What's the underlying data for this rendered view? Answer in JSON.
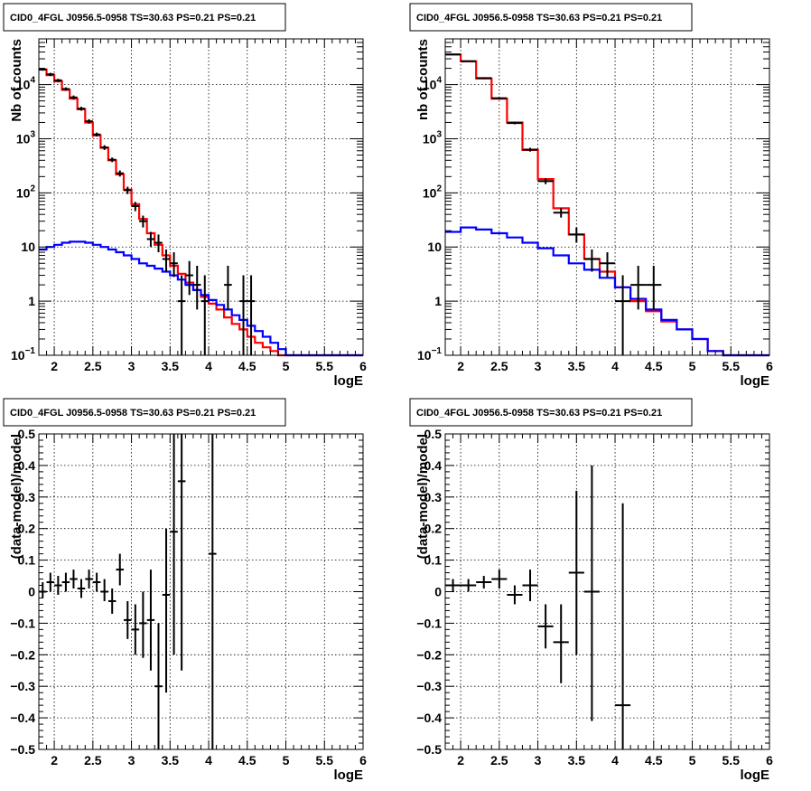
{
  "chart_data": [
    {
      "type": "histogram",
      "title": "CID0_4FGL J0956.5-0958 TS=30.63 PS=0.21 PS=0.21",
      "xlabel": "logE",
      "ylabel": "Nb of counts",
      "xlim": [
        1.8,
        6.0
      ],
      "ylim": [
        0.1,
        70000
      ],
      "log_y": true,
      "grid": true,
      "xticks": [
        "2",
        "2.5",
        "3",
        "3.5",
        "4",
        "4.5",
        "5",
        "5.5",
        "6"
      ],
      "yticks": [
        {
          "v": 0.1,
          "base": "10",
          "exp": "−1"
        },
        {
          "v": 1,
          "label": "1"
        },
        {
          "v": 10,
          "label": "10"
        },
        {
          "v": 100,
          "base": "10",
          "exp": "2"
        },
        {
          "v": 1000,
          "base": "10",
          "exp": "3"
        },
        {
          "v": 10000,
          "base": "10",
          "exp": "4"
        }
      ],
      "bin_edges": [
        1.8,
        1.9,
        2.0,
        2.1,
        2.2,
        2.3,
        2.4,
        2.5,
        2.6,
        2.7,
        2.8,
        2.9,
        3.0,
        3.1,
        3.2,
        3.3,
        3.4,
        3.5,
        3.6,
        3.7,
        3.8,
        3.9,
        4.0,
        4.1,
        4.2,
        4.3,
        4.4,
        4.5,
        4.6,
        4.7,
        4.8,
        4.9,
        5.0,
        5.1,
        5.2,
        5.3,
        5.4,
        5.5,
        5.6,
        5.7,
        5.8,
        5.9,
        6.0
      ],
      "series": [
        {
          "color": "#ff0000",
          "values": [
            19000,
            15000,
            11500,
            8000,
            5500,
            3500,
            2000,
            1150,
            680,
            400,
            220,
            115,
            62,
            33,
            18,
            11,
            7,
            4.5,
            3.2,
            2.2,
            1.6,
            1.2,
            0.9,
            0.7,
            0.5,
            0.38,
            0.3,
            0.22,
            0.17,
            0.14,
            0.12,
            0.1,
            0.1,
            0.1,
            0.1,
            0.1,
            0.1,
            0.1,
            0.1,
            0.1,
            0.1,
            0.1
          ]
        },
        {
          "color": "#0000ff",
          "values": [
            9,
            10,
            11,
            12,
            12.5,
            12.5,
            12,
            11,
            10,
            9,
            8,
            7,
            6,
            5,
            4.5,
            4,
            3.5,
            3,
            2.5,
            2,
            1.6,
            1.3,
            1.05,
            0.85,
            0.7,
            0.55,
            0.45,
            0.35,
            0.28,
            0.22,
            0.17,
            0.13,
            0.1,
            0.1,
            0.1,
            0.1,
            0.1,
            0.1,
            0.1,
            0.1,
            0.1,
            0.1
          ]
        }
      ],
      "points": [
        {
          "x": 1.85,
          "y": 19000,
          "lo": 18000,
          "hi": 20000
        },
        {
          "x": 1.95,
          "y": 15500,
          "lo": 14500,
          "hi": 16500
        },
        {
          "x": 2.05,
          "y": 12000,
          "lo": 11200,
          "hi": 12800
        },
        {
          "x": 2.15,
          "y": 8300,
          "lo": 7700,
          "hi": 8900
        },
        {
          "x": 2.25,
          "y": 5800,
          "lo": 5300,
          "hi": 6300
        },
        {
          "x": 2.35,
          "y": 3600,
          "lo": 3300,
          "hi": 3900
        },
        {
          "x": 2.45,
          "y": 2100,
          "lo": 1900,
          "hi": 2300
        },
        {
          "x": 2.55,
          "y": 1200,
          "lo": 1100,
          "hi": 1300
        },
        {
          "x": 2.65,
          "y": 690,
          "lo": 620,
          "hi": 760
        },
        {
          "x": 2.75,
          "y": 410,
          "lo": 370,
          "hi": 450
        },
        {
          "x": 2.85,
          "y": 230,
          "lo": 200,
          "hi": 260
        },
        {
          "x": 2.95,
          "y": 112,
          "lo": 95,
          "hi": 130
        },
        {
          "x": 3.05,
          "y": 57,
          "lo": 46,
          "hi": 68
        },
        {
          "x": 3.15,
          "y": 30,
          "lo": 23,
          "hi": 38
        },
        {
          "x": 3.25,
          "y": 14,
          "lo": 10,
          "hi": 19
        },
        {
          "x": 3.35,
          "y": 12,
          "lo": 8,
          "hi": 17
        },
        {
          "x": 3.45,
          "y": 6,
          "lo": 3.5,
          "hi": 9
        },
        {
          "x": 3.55,
          "y": 5,
          "lo": 2.8,
          "hi": 8
        },
        {
          "x": 3.65,
          "y": 1,
          "lo": 0.1,
          "hi": 3
        },
        {
          "x": 3.75,
          "y": 3,
          "lo": 1.3,
          "hi": 5.5
        },
        {
          "x": 3.85,
          "y": 2,
          "lo": 0.7,
          "hi": 4.5
        },
        {
          "x": 3.95,
          "y": 1,
          "lo": 0.1,
          "hi": 3
        },
        {
          "x": 4.25,
          "y": 2,
          "lo": 0.7,
          "hi": 4.5
        },
        {
          "x": 4.45,
          "y": 1,
          "lo": 0.1,
          "hi": 3
        },
        {
          "x": 4.55,
          "y": 1,
          "lo": 0.1,
          "hi": 3
        }
      ]
    },
    {
      "type": "histogram",
      "title": "CID0_4FGL J0956.5-0958 TS=30.63 PS=0.21 PS=0.21",
      "xlabel": "logE",
      "ylabel": "nb of counts",
      "xlim": [
        1.8,
        6.0
      ],
      "ylim": [
        0.1,
        70000
      ],
      "log_y": true,
      "grid": true,
      "xticks": [
        "2",
        "2.5",
        "3",
        "3.5",
        "4",
        "4.5",
        "5",
        "5.5",
        "6"
      ],
      "yticks": [
        {
          "v": 0.1,
          "base": "10",
          "exp": "−1"
        },
        {
          "v": 1,
          "label": "1"
        },
        {
          "v": 10,
          "label": "10"
        },
        {
          "v": 100,
          "base": "10",
          "exp": "2"
        },
        {
          "v": 1000,
          "base": "10",
          "exp": "3"
        },
        {
          "v": 10000,
          "base": "10",
          "exp": "4"
        }
      ],
      "bin_edges": [
        1.8,
        2.0,
        2.2,
        2.4,
        2.6,
        2.8,
        3.0,
        3.2,
        3.4,
        3.6,
        3.8,
        4.0,
        4.2,
        4.4,
        4.6,
        4.8,
        5.0,
        5.2,
        5.4,
        5.6,
        5.8,
        6.0
      ],
      "series": [
        {
          "color": "#ff0000",
          "values": [
            36000,
            27000,
            13000,
            5500,
            2000,
            620,
            180,
            52,
            17,
            6,
            3.5,
            1.8,
            1.0,
            0.65,
            0.42,
            0.3,
            0.2,
            0.12,
            0.1,
            0.1,
            0.1
          ]
        },
        {
          "color": "#0000ff",
          "values": [
            19,
            23,
            21,
            18,
            15,
            12,
            9.5,
            7,
            5,
            3.8,
            2.7,
            1.8,
            1.1,
            0.7,
            0.45,
            0.3,
            0.2,
            0.12,
            0.1,
            0.1,
            0.1
          ]
        }
      ],
      "points": [
        {
          "x": 1.9,
          "y": 36000,
          "lo": 35000,
          "hi": 37000
        },
        {
          "x": 2.1,
          "y": 27000,
          "lo": 26200,
          "hi": 27800
        },
        {
          "x": 2.3,
          "y": 13200,
          "lo": 12700,
          "hi": 13700
        },
        {
          "x": 2.5,
          "y": 5600,
          "lo": 5300,
          "hi": 5900
        },
        {
          "x": 2.7,
          "y": 1950,
          "lo": 1850,
          "hi": 2050
        },
        {
          "x": 2.9,
          "y": 630,
          "lo": 580,
          "hi": 680
        },
        {
          "x": 3.1,
          "y": 165,
          "lo": 145,
          "hi": 185
        },
        {
          "x": 3.3,
          "y": 43,
          "lo": 35,
          "hi": 52
        },
        {
          "x": 3.5,
          "y": 17,
          "lo": 12,
          "hi": 23
        },
        {
          "x": 3.7,
          "y": 6,
          "lo": 3.5,
          "hi": 9
        },
        {
          "x": 3.9,
          "y": 5,
          "lo": 2.8,
          "hi": 8
        },
        {
          "x": 4.1,
          "y": 1,
          "lo": 0.1,
          "hi": 3
        },
        {
          "x": 4.3,
          "y": 2,
          "lo": 0.7,
          "hi": 4.5
        },
        {
          "x": 4.5,
          "y": 2,
          "lo": 0.7,
          "hi": 4.5
        }
      ]
    },
    {
      "type": "scatter",
      "title": "CID0_4FGL J0956.5-0958 TS=30.63 PS=0.21 PS=0.21",
      "xlabel": "logE",
      "ylabel": "(data-model)/model",
      "xlim": [
        1.8,
        6.0
      ],
      "ylim": [
        -0.5,
        0.5
      ],
      "log_y": false,
      "grid": true,
      "xticks": [
        "2",
        "2.5",
        "3",
        "3.5",
        "4",
        "4.5",
        "5",
        "5.5",
        "6"
      ],
      "yticks": [
        {
          "v": -0.5,
          "label": "−0.5"
        },
        {
          "v": -0.4,
          "label": "−0.4"
        },
        {
          "v": -0.3,
          "label": "−0.3"
        },
        {
          "v": -0.2,
          "label": "−0.2"
        },
        {
          "v": -0.1,
          "label": "−0.1"
        },
        {
          "v": 0,
          "label": "0"
        },
        {
          "v": 0.1,
          "label": "0.1"
        },
        {
          "v": 0.2,
          "label": "0.2"
        },
        {
          "v": 0.3,
          "label": "0.3"
        },
        {
          "v": 0.4,
          "label": "0.4"
        },
        {
          "v": 0.5,
          "label": "0.5"
        }
      ],
      "half_width": 0.05,
      "points": [
        {
          "x": 1.85,
          "y": 0.0,
          "lo": -0.02,
          "hi": 0.03
        },
        {
          "x": 1.95,
          "y": 0.03,
          "lo": 0.0,
          "hi": 0.06
        },
        {
          "x": 2.05,
          "y": 0.02,
          "lo": -0.01,
          "hi": 0.05
        },
        {
          "x": 2.15,
          "y": 0.03,
          "lo": 0.0,
          "hi": 0.06
        },
        {
          "x": 2.25,
          "y": 0.04,
          "lo": 0.01,
          "hi": 0.07
        },
        {
          "x": 2.35,
          "y": 0.01,
          "lo": -0.02,
          "hi": 0.04
        },
        {
          "x": 2.45,
          "y": 0.04,
          "lo": 0.01,
          "hi": 0.07
        },
        {
          "x": 2.55,
          "y": 0.03,
          "lo": 0.0,
          "hi": 0.06
        },
        {
          "x": 2.65,
          "y": 0.0,
          "lo": -0.03,
          "hi": 0.04
        },
        {
          "x": 2.75,
          "y": -0.03,
          "lo": -0.07,
          "hi": 0.01
        },
        {
          "x": 2.85,
          "y": 0.07,
          "lo": 0.02,
          "hi": 0.12
        },
        {
          "x": 2.95,
          "y": -0.09,
          "lo": -0.15,
          "hi": -0.03
        },
        {
          "x": 3.05,
          "y": -0.12,
          "lo": -0.2,
          "hi": -0.04
        },
        {
          "x": 3.15,
          "y": -0.1,
          "lo": -0.21,
          "hi": 0.0
        },
        {
          "x": 3.25,
          "y": -0.09,
          "lo": -0.25,
          "hi": 0.07
        },
        {
          "x": 3.35,
          "y": -0.3,
          "lo": -0.5,
          "hi": -0.1
        },
        {
          "x": 3.45,
          "y": -0.01,
          "lo": -0.32,
          "hi": 0.2
        },
        {
          "x": 3.55,
          "y": 0.19,
          "lo": -0.2,
          "hi": 0.5
        },
        {
          "x": 3.65,
          "y": 0.35,
          "lo": -0.25,
          "hi": 0.5
        },
        {
          "x": 4.05,
          "y": 0.12,
          "lo": -0.5,
          "hi": 0.5
        }
      ]
    },
    {
      "type": "scatter",
      "title": "CID0_4FGL J0956.5-0958 TS=30.63 PS=0.21 PS=0.21",
      "xlabel": "logE",
      "ylabel": "(data-model)/model",
      "xlim": [
        1.8,
        6.0
      ],
      "ylim": [
        -0.5,
        0.5
      ],
      "log_y": false,
      "grid": true,
      "xticks": [
        "2",
        "2.5",
        "3",
        "3.5",
        "4",
        "4.5",
        "5",
        "5.5",
        "6"
      ],
      "yticks": [
        {
          "v": -0.5,
          "label": "−0.5"
        },
        {
          "v": -0.4,
          "label": "−0.4"
        },
        {
          "v": -0.3,
          "label": "−0.3"
        },
        {
          "v": -0.2,
          "label": "−0.2"
        },
        {
          "v": -0.1,
          "label": "−0.1"
        },
        {
          "v": 0,
          "label": "0"
        },
        {
          "v": 0.1,
          "label": "0.1"
        },
        {
          "v": 0.2,
          "label": "0.2"
        },
        {
          "v": 0.3,
          "label": "0.3"
        },
        {
          "v": 0.4,
          "label": "0.4"
        },
        {
          "v": 0.5,
          "label": "0.5"
        }
      ],
      "half_width": 0.1,
      "points": [
        {
          "x": 1.9,
          "y": 0.02,
          "lo": 0.0,
          "hi": 0.04
        },
        {
          "x": 2.1,
          "y": 0.02,
          "lo": 0.0,
          "hi": 0.04
        },
        {
          "x": 2.3,
          "y": 0.03,
          "lo": 0.01,
          "hi": 0.05
        },
        {
          "x": 2.5,
          "y": 0.04,
          "lo": 0.01,
          "hi": 0.07
        },
        {
          "x": 2.7,
          "y": -0.01,
          "lo": -0.04,
          "hi": 0.02
        },
        {
          "x": 2.9,
          "y": 0.02,
          "lo": -0.03,
          "hi": 0.07
        },
        {
          "x": 3.1,
          "y": -0.11,
          "lo": -0.18,
          "hi": -0.04
        },
        {
          "x": 3.3,
          "y": -0.16,
          "lo": -0.29,
          "hi": -0.04
        },
        {
          "x": 3.5,
          "y": 0.06,
          "lo": -0.2,
          "hi": 0.32
        },
        {
          "x": 3.7,
          "y": 0.0,
          "lo": -0.41,
          "hi": 0.4
        },
        {
          "x": 4.1,
          "y": -0.36,
          "lo": -0.5,
          "hi": 0.28
        }
      ]
    }
  ]
}
